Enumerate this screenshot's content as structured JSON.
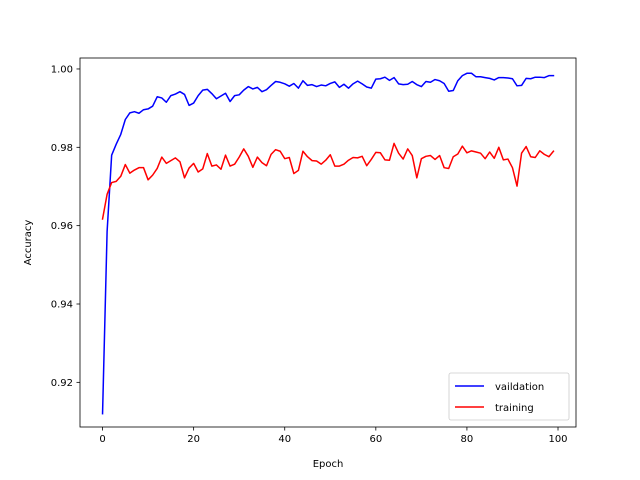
{
  "chart_data": {
    "type": "line",
    "title": "",
    "xlabel": "Epoch",
    "ylabel": "Accuracy",
    "xlim": [
      -4.95,
      103.95
    ],
    "ylim": [
      0.9086,
      1.0028
    ],
    "xticks": [
      0,
      20,
      40,
      60,
      80,
      100
    ],
    "yticks": [
      0.92,
      0.94,
      0.96,
      0.98,
      1.0
    ],
    "ytick_labels": [
      "0.92",
      "0.94",
      "0.96",
      "0.98",
      "1.00"
    ],
    "grid": false,
    "legend_position": "bottom-right",
    "x": [
      0,
      1,
      2,
      3,
      4,
      5,
      6,
      7,
      8,
      9,
      10,
      11,
      12,
      13,
      14,
      15,
      16,
      17,
      18,
      19,
      20,
      21,
      22,
      23,
      24,
      25,
      26,
      27,
      28,
      29,
      30,
      31,
      32,
      33,
      34,
      35,
      36,
      37,
      38,
      39,
      40,
      41,
      42,
      43,
      44,
      45,
      46,
      47,
      48,
      49,
      50,
      51,
      52,
      53,
      54,
      55,
      56,
      57,
      58,
      59,
      60,
      61,
      62,
      63,
      64,
      65,
      66,
      67,
      68,
      69,
      70,
      71,
      72,
      73,
      74,
      75,
      76,
      77,
      78,
      79,
      80,
      81,
      82,
      83,
      84,
      85,
      86,
      87,
      88,
      89,
      90,
      91,
      92,
      93,
      94,
      95,
      96,
      97,
      98,
      99
    ],
    "series": [
      {
        "name": "vaildation",
        "color": "#0000ff",
        "values": [
          0.912,
          0.9585,
          0.978,
          0.9808,
          0.9833,
          0.9871,
          0.9888,
          0.9891,
          0.9887,
          0.9896,
          0.9898,
          0.9905,
          0.9929,
          0.9926,
          0.9915,
          0.9932,
          0.9936,
          0.9942,
          0.9935,
          0.9907,
          0.9913,
          0.9932,
          0.9946,
          0.9948,
          0.9937,
          0.9924,
          0.9931,
          0.9938,
          0.9917,
          0.9932,
          0.9934,
          0.9946,
          0.9955,
          0.9949,
          0.9953,
          0.9942,
          0.9947,
          0.9958,
          0.9968,
          0.9966,
          0.9962,
          0.9956,
          0.9963,
          0.9951,
          0.997,
          0.9958,
          0.996,
          0.9955,
          0.9959,
          0.9957,
          0.9963,
          0.9967,
          0.9953,
          0.9961,
          0.9951,
          0.9962,
          0.9969,
          0.9962,
          0.9954,
          0.9951,
          0.9974,
          0.9975,
          0.9979,
          0.9971,
          0.9978,
          0.9962,
          0.996,
          0.9961,
          0.9968,
          0.996,
          0.9955,
          0.9968,
          0.9966,
          0.9973,
          0.997,
          0.9963,
          0.9943,
          0.9945,
          0.997,
          0.9983,
          0.9989,
          0.9989,
          0.998,
          0.998,
          0.9978,
          0.9976,
          0.9972,
          0.9978,
          0.9978,
          0.9977,
          0.9975,
          0.9957,
          0.9958,
          0.9976,
          0.9975,
          0.9979,
          0.9979,
          0.9978,
          0.9983,
          0.9983
        ]
      },
      {
        "name": "training",
        "color": "#ff0000",
        "values": [
          0.9617,
          0.968,
          0.971,
          0.9713,
          0.9726,
          0.9756,
          0.9734,
          0.9742,
          0.9748,
          0.9748,
          0.9717,
          0.9729,
          0.9746,
          0.9775,
          0.9759,
          0.9766,
          0.9773,
          0.9763,
          0.9722,
          0.9747,
          0.9759,
          0.9737,
          0.9745,
          0.9784,
          0.9752,
          0.9755,
          0.9744,
          0.978,
          0.9752,
          0.9757,
          0.9775,
          0.9796,
          0.9777,
          0.9749,
          0.9775,
          0.9761,
          0.9753,
          0.9782,
          0.9794,
          0.979,
          0.9771,
          0.9774,
          0.9733,
          0.9741,
          0.979,
          0.9776,
          0.9766,
          0.9765,
          0.9757,
          0.9767,
          0.9781,
          0.9752,
          0.9752,
          0.9757,
          0.9767,
          0.9774,
          0.9773,
          0.9777,
          0.9753,
          0.9769,
          0.9787,
          0.9786,
          0.9768,
          0.9767,
          0.981,
          0.9785,
          0.977,
          0.9796,
          0.9779,
          0.9722,
          0.9771,
          0.9777,
          0.9779,
          0.9769,
          0.9779,
          0.9748,
          0.9746,
          0.9776,
          0.9783,
          0.9803,
          0.9786,
          0.9791,
          0.9788,
          0.9785,
          0.9771,
          0.9788,
          0.9772,
          0.98,
          0.9768,
          0.977,
          0.9748,
          0.9701,
          0.9785,
          0.9802,
          0.9776,
          0.9774,
          0.9791,
          0.9782,
          0.9776,
          0.979
        ]
      }
    ]
  }
}
